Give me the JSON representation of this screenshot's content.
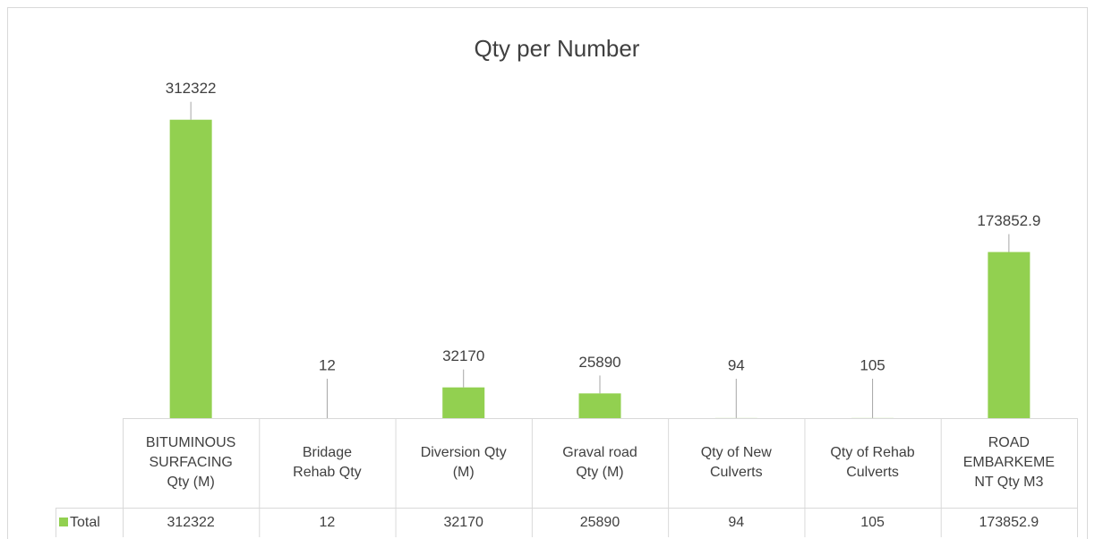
{
  "chart_data": {
    "type": "bar",
    "title": "Qty per Number",
    "categories": [
      "BITUMINOUS SURFACING Qty (M)",
      "Bridage Rehab Qty",
      "Diversion Qty (M)",
      "Graval road Qty (M)",
      "Qty of New Culverts",
      "Qty of Rehab Culverts",
      "ROAD EMBARKEMENT Qty M3"
    ],
    "series": [
      {
        "name": "Total",
        "color": "#92d050",
        "values": [
          312322,
          12,
          32170,
          25890,
          94,
          105,
          173852.9
        ]
      }
    ],
    "ylim": [
      0,
      350000
    ]
  }
}
